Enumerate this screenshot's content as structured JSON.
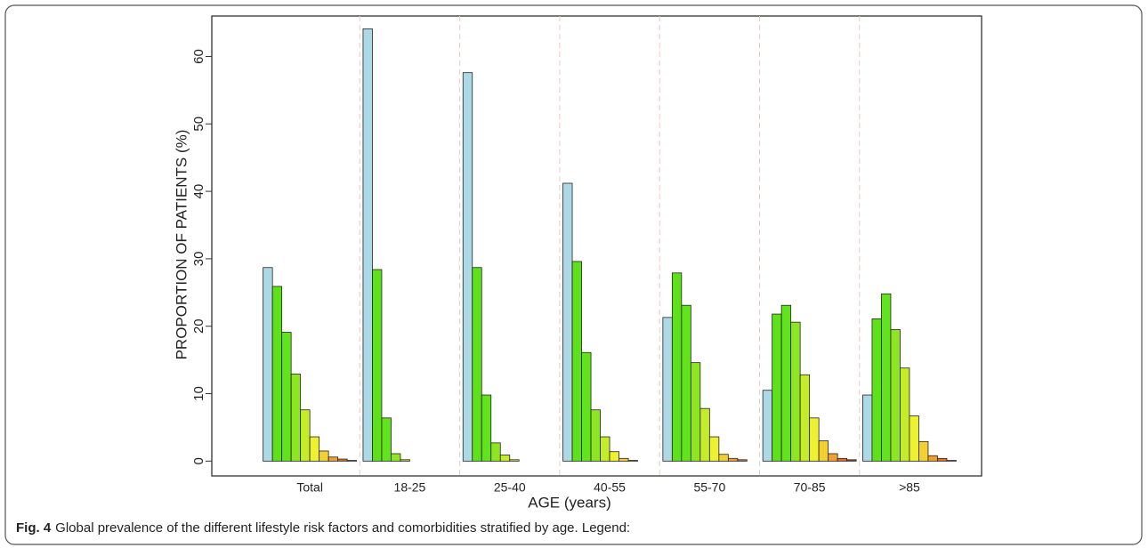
{
  "chart_data": {
    "type": "bar",
    "caption_label": "Fig. 4",
    "caption": "Global prevalence of the different lifestyle risk factors and comorbidities stratified by age. Legend:",
    "xlabel": "AGE (years)",
    "ylabel": "PROPORTION OF PATIENTS (%)",
    "categories": [
      "Total",
      "18-25",
      "25-40",
      "40-55",
      "55-70",
      "70-85",
      ">85"
    ],
    "series": [
      {
        "color": "#add8e6",
        "values": [
          28.7,
          64.1,
          57.6,
          41.2,
          21.3,
          10.5,
          9.8
        ]
      },
      {
        "color": "#5ee01a",
        "values": [
          25.9,
          28.4,
          28.7,
          29.6,
          27.9,
          21.8,
          21.1
        ]
      },
      {
        "color": "#62e41c",
        "values": [
          19.1,
          6.4,
          9.8,
          16.1,
          23.1,
          23.1,
          24.8
        ]
      },
      {
        "color": "#8ee622",
        "values": [
          12.9,
          1.1,
          2.7,
          7.6,
          14.6,
          20.6,
          19.5
        ]
      },
      {
        "color": "#c4ec2a",
        "values": [
          7.6,
          0.2,
          0.9,
          3.6,
          7.8,
          12.8,
          13.8
        ]
      },
      {
        "color": "#eef032",
        "values": [
          3.6,
          0,
          0.2,
          1.4,
          3.6,
          6.4,
          6.7
        ]
      },
      {
        "color": "#f2d030",
        "values": [
          1.5,
          0,
          0,
          0.4,
          1.0,
          3.0,
          2.9
        ]
      },
      {
        "color": "#f0a030",
        "values": [
          0.6,
          0,
          0,
          0.1,
          0.4,
          1.1,
          0.8
        ]
      },
      {
        "color": "#e07020",
        "values": [
          0.3,
          0,
          0,
          0,
          0.2,
          0.4,
          0.4
        ]
      },
      {
        "color": "#a04010",
        "values": [
          0.1,
          0,
          0,
          0,
          0,
          0.2,
          0.1
        ]
      }
    ],
    "ylim": [
      -2.2,
      66
    ],
    "yticks": [
      0,
      10,
      20,
      30,
      40,
      50,
      60
    ]
  }
}
